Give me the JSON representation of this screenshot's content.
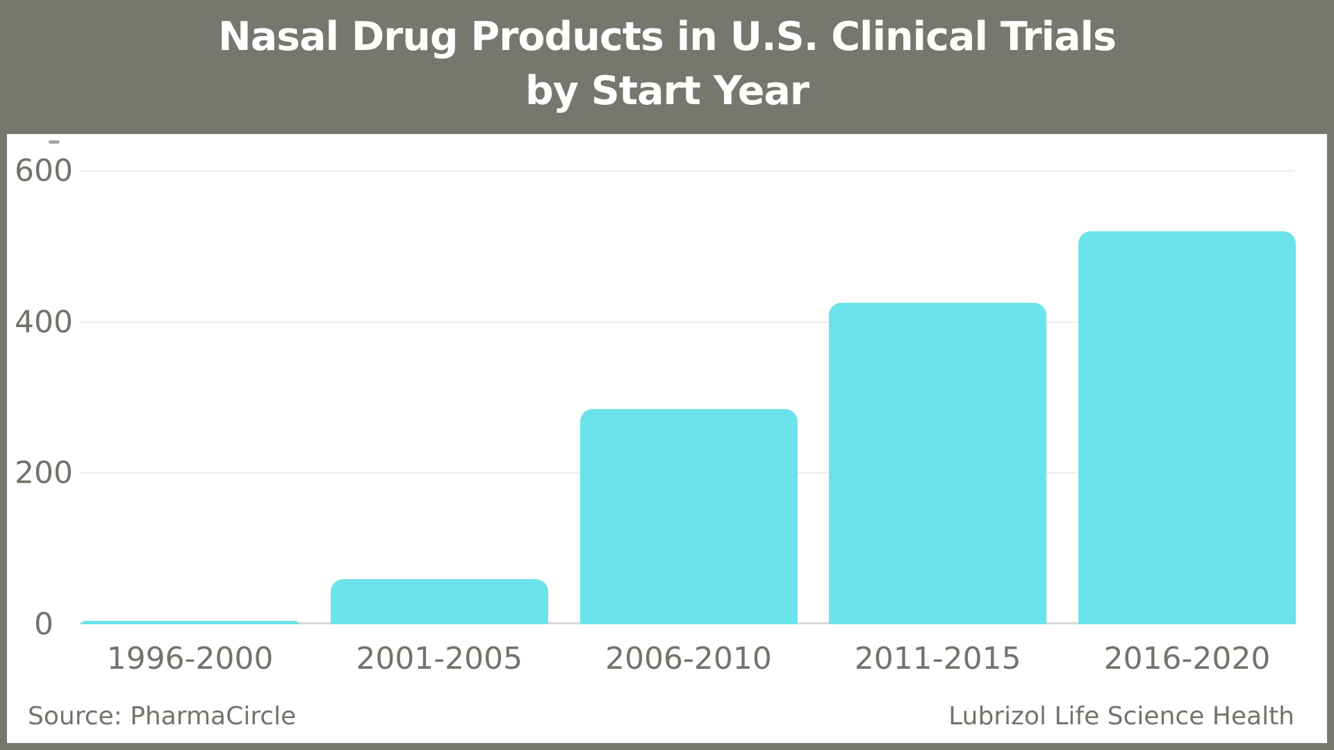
{
  "header": {
    "title_line1": "Nasal Drug Products in U.S. Clinical Trials",
    "title_line2": "by Start Year"
  },
  "chart_data": {
    "type": "bar",
    "title": "Nasal Drug Products in U.S. Clinical Trials by Start Year",
    "categories": [
      "1996-2000",
      "2001-2005",
      "2006-2010",
      "2011-2015",
      "2016-2020"
    ],
    "values": [
      5,
      60,
      285,
      425,
      520
    ],
    "xlabel": "",
    "ylabel": "",
    "ylim": [
      0,
      600
    ],
    "yticks": [
      0,
      200,
      400,
      600
    ],
    "grid": true,
    "legend": false,
    "bar_color": "#6ae3ea"
  },
  "footer": {
    "source": "Source: PharmaCircle",
    "brand": "Lubrizol Life Science Health"
  },
  "colors": {
    "header_bg": "#76776f",
    "frame_border": "#76776f",
    "title_text": "#ffffff",
    "bar": "#6ae3ea",
    "axis_text": "#72736a",
    "gridline": "#ececec",
    "baseline": "#d9d9d9",
    "plot_bg": "#ffffff"
  }
}
